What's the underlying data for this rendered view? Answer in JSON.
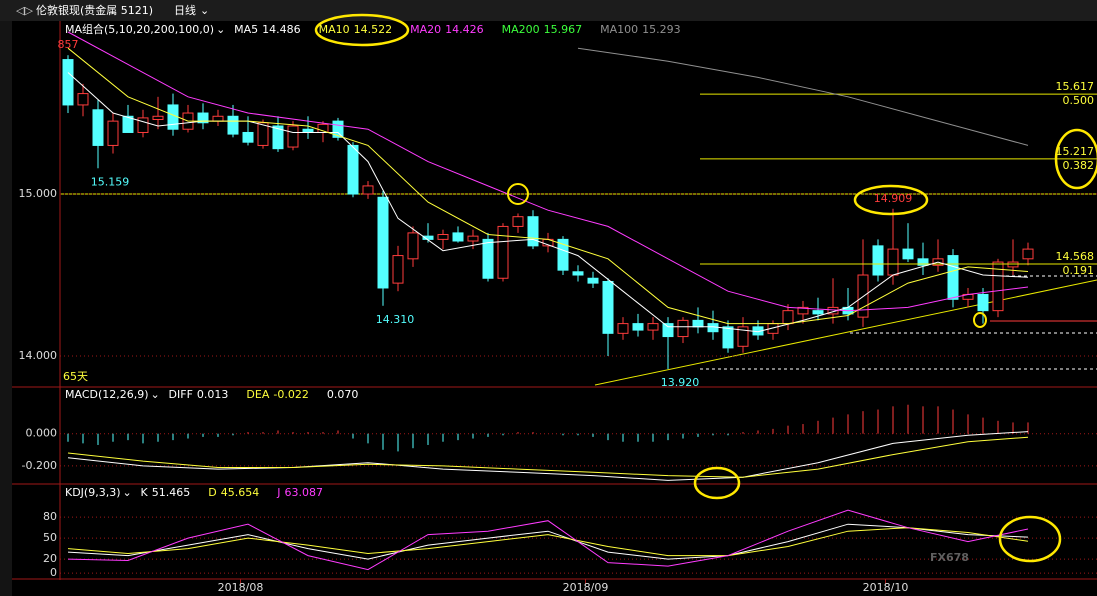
{
  "header": {
    "symbol": "伦敦银现(贵金属 5121)",
    "period": "日线"
  },
  "chart_data": [
    {
      "type": "candlestick",
      "indicator": "MA组合(5,10,20,200,100,0)",
      "xlim": [
        -0.533,
        68.6
      ],
      "ylim": [
        13.821,
        16.062
      ],
      "yticks": [
        {
          "value": 14,
          "label": "14.000"
        },
        {
          "value": 15,
          "label": "15.000"
        }
      ],
      "xticks": [
        {
          "value": 11.5,
          "label": "2018/08"
        },
        {
          "value": 34.5,
          "label": "2018/09"
        },
        {
          "value": 54.5,
          "label": "2018/10"
        }
      ],
      "up_color": "#ff3c3c",
      "down_color": "#54ffff",
      "open": [
        15.83,
        15.55,
        15.52,
        15.3,
        15.48,
        15.38,
        15.46,
        15.55,
        15.4,
        15.5,
        15.45,
        15.48,
        15.38,
        15.3,
        15.42,
        15.29,
        15.4,
        15.38,
        15.45,
        15.3,
        15.0,
        14.98,
        14.45,
        14.6,
        14.74,
        14.72,
        14.76,
        14.71,
        14.72,
        14.48,
        14.8,
        14.86,
        14.68,
        14.72,
        14.52,
        14.48,
        14.46,
        14.14,
        14.2,
        14.16,
        14.2,
        14.12,
        14.22,
        14.2,
        14.18,
        14.06,
        14.18,
        14.14,
        14.2,
        14.26,
        14.28,
        14.26,
        14.3,
        14.24,
        14.68,
        14.5,
        14.66,
        14.6,
        14.56,
        14.62,
        14.35,
        14.38,
        14.28,
        14.55,
        14.6
      ],
      "high": [
        15.857,
        15.68,
        15.58,
        15.5,
        15.55,
        15.52,
        15.6,
        15.62,
        15.55,
        15.56,
        15.52,
        15.55,
        15.48,
        15.46,
        15.48,
        15.45,
        15.48,
        15.45,
        15.47,
        15.32,
        15.08,
        15.02,
        14.68,
        14.8,
        14.82,
        14.78,
        14.8,
        14.78,
        14.76,
        14.82,
        14.88,
        14.9,
        14.76,
        14.74,
        14.56,
        14.52,
        14.48,
        14.24,
        14.26,
        14.24,
        14.24,
        14.24,
        14.3,
        14.28,
        14.22,
        14.24,
        14.22,
        14.22,
        14.32,
        14.34,
        14.36,
        14.48,
        14.42,
        14.72,
        14.72,
        14.909,
        14.82,
        14.7,
        14.72,
        14.66,
        14.42,
        14.42,
        14.6,
        14.72,
        14.7
      ],
      "low": [
        15.5,
        15.48,
        15.159,
        15.25,
        15.4,
        15.35,
        15.4,
        15.36,
        15.38,
        15.4,
        15.42,
        15.35,
        15.3,
        15.28,
        15.26,
        15.27,
        15.34,
        15.32,
        15.33,
        14.98,
        14.97,
        14.31,
        14.4,
        14.55,
        14.7,
        14.66,
        14.7,
        14.66,
        14.46,
        14.46,
        14.76,
        14.66,
        14.64,
        14.5,
        14.46,
        14.42,
        14.0,
        14.1,
        14.12,
        14.1,
        13.92,
        14.08,
        14.14,
        14.1,
        14.02,
        14.02,
        14.1,
        14.1,
        14.16,
        14.2,
        14.22,
        14.2,
        14.22,
        14.18,
        14.46,
        14.44,
        14.58,
        14.5,
        14.52,
        14.3,
        14.3,
        14.2,
        14.24,
        14.5,
        14.56
      ],
      "close": [
        15.55,
        15.62,
        15.3,
        15.45,
        15.38,
        15.47,
        15.48,
        15.4,
        15.5,
        15.44,
        15.48,
        15.37,
        15.32,
        15.44,
        15.28,
        15.42,
        15.38,
        15.43,
        15.35,
        15.0,
        15.05,
        14.42,
        14.62,
        14.76,
        14.72,
        14.75,
        14.71,
        14.74,
        14.48,
        14.8,
        14.86,
        14.68,
        14.72,
        14.53,
        14.5,
        14.45,
        14.14,
        14.2,
        14.16,
        14.2,
        14.12,
        14.22,
        14.18,
        14.15,
        14.05,
        14.18,
        14.13,
        14.2,
        14.28,
        14.3,
        14.26,
        14.3,
        14.26,
        14.5,
        14.5,
        14.66,
        14.6,
        14.56,
        14.6,
        14.35,
        14.38,
        14.28,
        14.58,
        14.58,
        14.66
      ],
      "series": [
        {
          "name": "MA5",
          "current": "14.486",
          "color": "#ffffff",
          "x": [
            0,
            3,
            6,
            9,
            12,
            15,
            18,
            20,
            22,
            25,
            28,
            31,
            34,
            37,
            40,
            43,
            46,
            49,
            52,
            55,
            58,
            61,
            64
          ],
          "values": [
            15.75,
            15.5,
            15.42,
            15.45,
            15.45,
            15.38,
            15.38,
            15.2,
            14.85,
            14.65,
            14.7,
            14.72,
            14.62,
            14.4,
            14.18,
            14.18,
            14.15,
            14.22,
            14.3,
            14.5,
            14.58,
            14.5,
            14.486
          ]
        },
        {
          "name": "MA10",
          "current": "14.522",
          "color": "#ffff3c",
          "x": [
            0,
            4,
            8,
            12,
            16,
            20,
            24,
            28,
            32,
            36,
            40,
            44,
            48,
            52,
            56,
            60,
            64
          ],
          "values": [
            15.9,
            15.6,
            15.45,
            15.45,
            15.42,
            15.3,
            14.95,
            14.75,
            14.72,
            14.6,
            14.3,
            14.2,
            14.2,
            14.25,
            14.45,
            14.55,
            14.522
          ]
        },
        {
          "name": "MA20",
          "current": "14.426",
          "color": "#ff3cff",
          "x": [
            0,
            4,
            8,
            12,
            16,
            20,
            24,
            28,
            32,
            36,
            40,
            44,
            48,
            52,
            56,
            60,
            64
          ],
          "values": [
            16.0,
            15.8,
            15.6,
            15.5,
            15.45,
            15.4,
            15.2,
            15.05,
            14.9,
            14.8,
            14.6,
            14.4,
            14.3,
            14.28,
            14.3,
            14.38,
            14.426
          ]
        },
        {
          "name": "MA200",
          "current": "15.967",
          "color": "#3cff3c",
          "x": [],
          "values": []
        },
        {
          "name": "MA100",
          "current": "15.293",
          "color": "#909090",
          "x": [
            34,
            40,
            46,
            52,
            58,
            64
          ],
          "values": [
            15.9,
            15.82,
            15.72,
            15.6,
            15.45,
            15.3
          ]
        }
      ],
      "annotations": [
        {
          "label": "857",
          "x": 0,
          "value": 15.857
        },
        {
          "label": "15.159",
          "x": 2,
          "value": 15.159
        },
        {
          "label": "14.310",
          "x": 21,
          "value": 14.31
        },
        {
          "label": "13.920",
          "x": 40,
          "value": 13.92
        },
        {
          "label": "14.909",
          "x": 55,
          "value": 14.909
        }
      ],
      "levels": [
        {
          "value": 15.617,
          "label": "15.617",
          "ratio": "0.500"
        },
        {
          "value": 15.217,
          "label": "15.217",
          "ratio": "0.382"
        },
        {
          "value": 14.568,
          "label": "14.568",
          "ratio": "0.191"
        }
      ],
      "range_label": "65天"
    },
    {
      "type": "macd",
      "indicator": "MACD(12,26,9)",
      "histogram_current": "0.070",
      "xlim": [
        -0.533,
        68.6
      ],
      "ylim": [
        -0.3,
        0.29
      ],
      "yticks": [
        {
          "value": 0,
          "label": "0.000"
        },
        {
          "value": -0.2,
          "label": "-0.200"
        }
      ],
      "up_color": "#ff3c3c",
      "down_color": "#54ffff",
      "values": [
        -0.05,
        -0.06,
        -0.07,
        -0.05,
        -0.04,
        -0.06,
        -0.05,
        -0.04,
        -0.03,
        -0.02,
        -0.02,
        -0.01,
        0.01,
        0.01,
        0.02,
        0.01,
        0.01,
        0.01,
        0.02,
        -0.03,
        -0.06,
        -0.1,
        -0.11,
        -0.09,
        -0.07,
        -0.05,
        -0.04,
        -0.03,
        -0.02,
        -0.01,
        0.01,
        0.01,
        0.0,
        -0.01,
        -0.01,
        -0.02,
        -0.04,
        -0.05,
        -0.05,
        -0.05,
        -0.04,
        -0.03,
        -0.02,
        -0.01,
        -0.01,
        0.01,
        0.02,
        0.03,
        0.05,
        0.06,
        0.08,
        0.1,
        0.12,
        0.14,
        0.15,
        0.17,
        0.18,
        0.17,
        0.17,
        0.15,
        0.12,
        0.1,
        0.08,
        0.07,
        0.07
      ],
      "series": [
        {
          "name": "DIFF",
          "current": "0.013",
          "color": "#ffffff",
          "x": [
            0,
            5,
            10,
            15,
            20,
            25,
            30,
            35,
            40,
            45,
            50,
            55,
            60,
            64
          ],
          "values": [
            -0.15,
            -0.2,
            -0.22,
            -0.21,
            -0.18,
            -0.22,
            -0.24,
            -0.26,
            -0.29,
            -0.27,
            -0.18,
            -0.06,
            -0.01,
            0.013
          ]
        },
        {
          "name": "DEA",
          "current": "-0.022",
          "color": "#ffff3c",
          "x": [
            0,
            5,
            10,
            15,
            20,
            25,
            30,
            35,
            40,
            45,
            50,
            55,
            60,
            64
          ],
          "values": [
            -0.12,
            -0.17,
            -0.21,
            -0.21,
            -0.19,
            -0.2,
            -0.22,
            -0.24,
            -0.26,
            -0.27,
            -0.22,
            -0.13,
            -0.05,
            -0.022
          ]
        }
      ]
    },
    {
      "type": "kdj",
      "indicator": "KDJ(9,3,3)",
      "xlim": [
        -0.533,
        68.6
      ],
      "ylim": [
        -7,
        126
      ],
      "yticks": [
        0,
        20,
        50,
        80
      ],
      "series": [
        {
          "name": "K",
          "current": "51.465",
          "color": "#ffffff",
          "x": [
            0,
            4,
            8,
            12,
            16,
            20,
            24,
            28,
            32,
            36,
            40,
            44,
            48,
            52,
            56,
            60,
            64
          ],
          "values": [
            30,
            25,
            40,
            55,
            35,
            20,
            40,
            50,
            60,
            30,
            20,
            25,
            45,
            70,
            65,
            55,
            51.465
          ]
        },
        {
          "name": "D",
          "current": "45.654",
          "color": "#ffff3c",
          "x": [
            0,
            4,
            8,
            12,
            16,
            20,
            24,
            28,
            32,
            36,
            40,
            44,
            48,
            52,
            56,
            60,
            64
          ],
          "values": [
            35,
            28,
            35,
            50,
            40,
            28,
            35,
            45,
            55,
            38,
            25,
            25,
            38,
            60,
            65,
            58,
            45.654
          ]
        },
        {
          "name": "J",
          "current": "63.087",
          "color": "#ff3cff",
          "x": [
            0,
            4,
            8,
            12,
            16,
            20,
            24,
            28,
            32,
            36,
            40,
            44,
            48,
            52,
            56,
            60,
            64
          ],
          "values": [
            20,
            18,
            50,
            70,
            25,
            5,
            55,
            60,
            75,
            15,
            10,
            25,
            60,
            90,
            65,
            45,
            63.087
          ]
        }
      ]
    }
  ],
  "watermark": "FX678"
}
